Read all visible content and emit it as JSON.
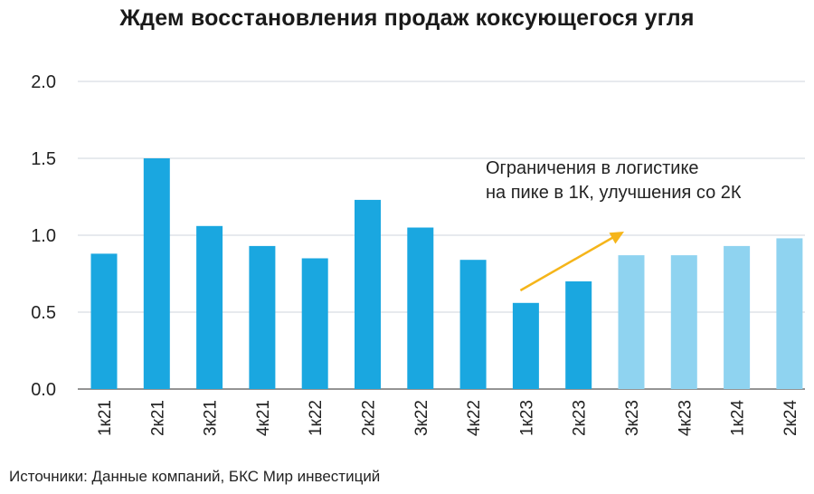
{
  "chart_data": {
    "type": "bar",
    "title": "Ждем восстановления продаж коксующегося угля",
    "categories": [
      "1к21",
      "2к21",
      "3к21",
      "4к21",
      "1к22",
      "2к22",
      "3к22",
      "4к22",
      "1к23",
      "2к23",
      "3к23",
      "4к23",
      "1к24",
      "2к24"
    ],
    "values": [
      0.88,
      1.5,
      1.06,
      0.93,
      0.85,
      1.23,
      1.05,
      0.84,
      0.56,
      0.7,
      0.87,
      0.87,
      0.93,
      0.98
    ],
    "forecast": [
      false,
      false,
      false,
      false,
      false,
      false,
      false,
      false,
      false,
      false,
      true,
      true,
      true,
      true
    ],
    "ylim": [
      0,
      2.0
    ],
    "yticks": [
      "0.0",
      "0.5",
      "1.0",
      "1.5",
      "2.0"
    ],
    "xlabel": "",
    "ylabel": "",
    "grid": true,
    "annotation_lines": [
      "Ограничения в логистике",
      "на пике в 1К, улучшения со 2К"
    ],
    "colors": {
      "actual": "#1aa7e0",
      "forecast": "#8fd3f0",
      "arrow": "#f5b51a",
      "grid": "#cfd6dc",
      "axis": "#555555"
    }
  },
  "source": "Источники: Данные компаний, БКС Мир инвестиций"
}
